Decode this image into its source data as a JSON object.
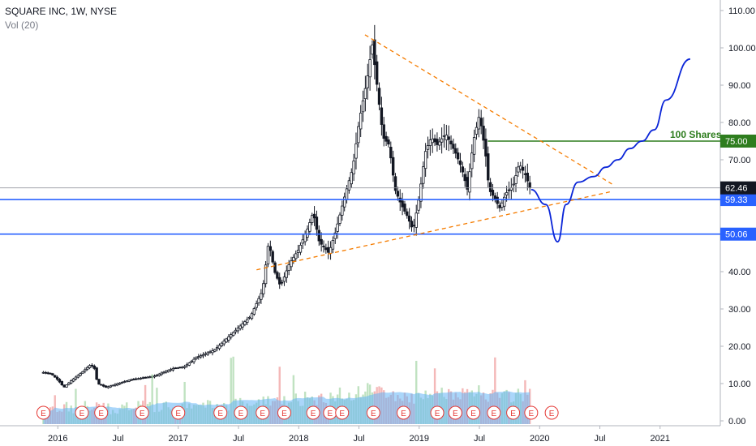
{
  "legend": {
    "symbol_line": "SQUARE INC, 1W, NYSE",
    "volume_line": "Vol (20)"
  },
  "chart_data": {
    "type": "candlestick",
    "title": "SQUARE INC, 1W, NYSE",
    "ylim": [
      0,
      112
    ],
    "y_ticks": [
      "110.00",
      "100.00",
      "90.00",
      "80.00",
      "70.00",
      "60.00",
      "50.00",
      "40.00",
      "30.00",
      "20.00",
      "10.00",
      "0.00"
    ],
    "x_ticks": [
      {
        "label": "2016",
        "t": 2016.0
      },
      {
        "label": "Jul",
        "t": 2016.5
      },
      {
        "label": "2017",
        "t": 2017.0
      },
      {
        "label": "Jul",
        "t": 2017.5
      },
      {
        "label": "2018",
        "t": 2018.0
      },
      {
        "label": "Jul",
        "t": 2018.5
      },
      {
        "label": "2019",
        "t": 2019.0
      },
      {
        "label": "Jul",
        "t": 2019.5
      },
      {
        "label": "2020",
        "t": 2020.0
      },
      {
        "label": "Jul",
        "t": 2020.5
      },
      {
        "label": "2021",
        "t": 2021.0
      }
    ],
    "price_path": [
      [
        2015.88,
        13
      ],
      [
        2015.95,
        12.5
      ],
      [
        2016.0,
        11
      ],
      [
        2016.05,
        9
      ],
      [
        2016.12,
        11
      ],
      [
        2016.2,
        13
      ],
      [
        2016.27,
        15
      ],
      [
        2016.3,
        14.5
      ],
      [
        2016.33,
        10
      ],
      [
        2016.4,
        9
      ],
      [
        2016.5,
        10
      ],
      [
        2016.6,
        11
      ],
      [
        2016.7,
        11.5
      ],
      [
        2016.8,
        12
      ],
      [
        2016.95,
        14
      ],
      [
        2017.05,
        14.5
      ],
      [
        2017.15,
        17
      ],
      [
        2017.3,
        19
      ],
      [
        2017.4,
        22
      ],
      [
        2017.5,
        25
      ],
      [
        2017.6,
        28
      ],
      [
        2017.7,
        35
      ],
      [
        2017.75,
        48
      ],
      [
        2017.8,
        40
      ],
      [
        2017.85,
        36
      ],
      [
        2017.92,
        42
      ],
      [
        2018.0,
        46
      ],
      [
        2018.08,
        52
      ],
      [
        2018.12,
        56
      ],
      [
        2018.17,
        48
      ],
      [
        2018.25,
        45
      ],
      [
        2018.3,
        50
      ],
      [
        2018.38,
        60
      ],
      [
        2018.45,
        68
      ],
      [
        2018.5,
        80
      ],
      [
        2018.57,
        92
      ],
      [
        2018.61,
        101
      ],
      [
        2018.65,
        90
      ],
      [
        2018.7,
        76
      ],
      [
        2018.75,
        74
      ],
      [
        2018.8,
        62
      ],
      [
        2018.85,
        58
      ],
      [
        2018.9,
        55
      ],
      [
        2018.95,
        51
      ],
      [
        2019.0,
        60
      ],
      [
        2019.05,
        72
      ],
      [
        2019.1,
        76
      ],
      [
        2019.15,
        74
      ],
      [
        2019.22,
        77
      ],
      [
        2019.3,
        72
      ],
      [
        2019.35,
        68
      ],
      [
        2019.4,
        62
      ],
      [
        2019.45,
        75
      ],
      [
        2019.5,
        82
      ],
      [
        2019.55,
        72
      ],
      [
        2019.58,
        62
      ],
      [
        2019.62,
        60
      ],
      [
        2019.67,
        57
      ],
      [
        2019.72,
        61
      ],
      [
        2019.78,
        63
      ],
      [
        2019.83,
        69
      ],
      [
        2019.88,
        66
      ],
      [
        2019.92,
        62.46
      ]
    ],
    "horizontal_levels": [
      {
        "value": 59.33,
        "label": "59.33",
        "color": "#2962ff"
      },
      {
        "value": 50.06,
        "label": "50.06",
        "color": "#2962ff"
      },
      {
        "value": 75.0,
        "label": "75.00",
        "color": "#2e7d1e"
      }
    ],
    "last_price": {
      "value": 62.46,
      "label": "62.46",
      "color": "#131722"
    },
    "target_label": "100 Shares",
    "projection": [
      [
        2019.93,
        62
      ],
      [
        2020.05,
        58
      ],
      [
        2020.15,
        48
      ],
      [
        2020.22,
        58
      ],
      [
        2020.32,
        64
      ],
      [
        2020.45,
        65.5
      ],
      [
        2020.55,
        68
      ],
      [
        2020.65,
        70
      ],
      [
        2020.75,
        73
      ],
      [
        2020.85,
        75
      ],
      [
        2020.95,
        78
      ],
      [
        2021.05,
        86
      ],
      [
        2021.25,
        97
      ]
    ],
    "trendlines": [
      {
        "from": [
          2018.55,
          103.5
        ],
        "to": [
          2020.6,
          63.5
        ],
        "color": "#f57c00"
      },
      {
        "from": [
          2017.65,
          40.5
        ],
        "to": [
          2020.6,
          61.5
        ],
        "color": "#f57c00"
      }
    ],
    "earnings_markers": [
      2015.88,
      2016.2,
      2016.36,
      2016.7,
      2017.0,
      2017.35,
      2017.52,
      2017.7,
      2017.88,
      2018.12,
      2018.26,
      2018.36,
      2018.62,
      2018.87,
      2019.15,
      2019.3,
      2019.45,
      2019.62,
      2019.78,
      2019.93,
      2020.1
    ],
    "earnings_label": "E",
    "volume_ylim": [
      0,
      50
    ],
    "colors": {
      "up": "#131722",
      "down": "#131722",
      "projection": "#0a25d8",
      "volume_area": "#64b5f6",
      "volume_up": "#a5d6a7",
      "volume_down": "#ef9a9a",
      "earnings": "#e53935"
    }
  }
}
